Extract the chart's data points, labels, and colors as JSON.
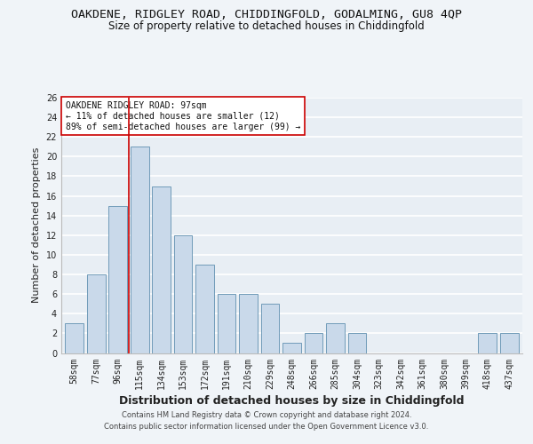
{
  "title1": "OAKDENE, RIDGLEY ROAD, CHIDDINGFOLD, GODALMING, GU8 4QP",
  "title2": "Size of property relative to detached houses in Chiddingfold",
  "xlabel": "Distribution of detached houses by size in Chiddingfold",
  "ylabel": "Number of detached properties",
  "categories": [
    "58sqm",
    "77sqm",
    "96sqm",
    "115sqm",
    "134sqm",
    "153sqm",
    "172sqm",
    "191sqm",
    "210sqm",
    "229sqm",
    "248sqm",
    "266sqm",
    "285sqm",
    "304sqm",
    "323sqm",
    "342sqm",
    "361sqm",
    "380sqm",
    "399sqm",
    "418sqm",
    "437sqm"
  ],
  "values": [
    3,
    8,
    15,
    21,
    17,
    12,
    9,
    6,
    6,
    5,
    1,
    2,
    3,
    2,
    0,
    0,
    0,
    0,
    0,
    2,
    2
  ],
  "bar_color": "#c9d9ea",
  "bar_edge_color": "#6090b0",
  "highlight_index": 2,
  "highlight_color": "#cc0000",
  "ylim": [
    0,
    26
  ],
  "yticks": [
    0,
    2,
    4,
    6,
    8,
    10,
    12,
    14,
    16,
    18,
    20,
    22,
    24,
    26
  ],
  "annotation_line1": "OAKDENE RIDGLEY ROAD: 97sqm",
  "annotation_line2": "← 11% of detached houses are smaller (12)",
  "annotation_line3": "89% of semi-detached houses are larger (99) →",
  "footer1": "Contains HM Land Registry data © Crown copyright and database right 2024.",
  "footer2": "Contains public sector information licensed under the Open Government Licence v3.0.",
  "bg_color": "#e8eef4",
  "grid_color": "#ffffff",
  "title1_fontsize": 9.5,
  "title2_fontsize": 8.5,
  "ylabel_fontsize": 8,
  "xlabel_fontsize": 9,
  "tick_fontsize": 7,
  "annot_fontsize": 7
}
